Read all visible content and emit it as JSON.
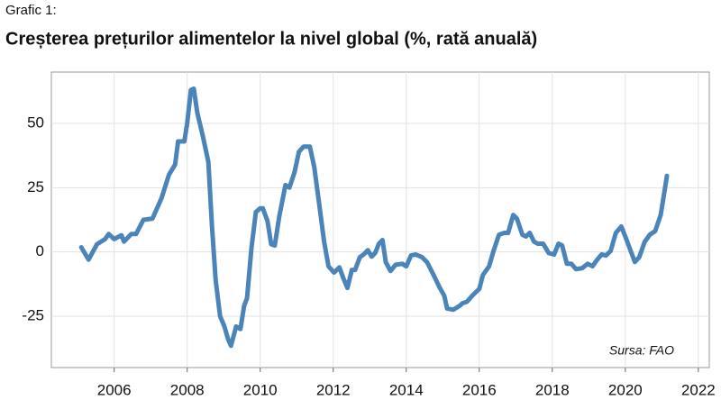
{
  "chart_data": {
    "type": "line",
    "label": "Grafic 1:",
    "title": "Creșterea prețurilor alimentelor la nivel global (%, rată anuală)",
    "source": "Sursa: FAO",
    "grid": true,
    "xlim": [
      2004.28,
      2022.3
    ],
    "ylim": [
      -45,
      70
    ],
    "xticks": [
      2006,
      2008,
      2010,
      2012,
      2014,
      2016,
      2018,
      2020,
      2022
    ],
    "yticks": [
      -25,
      0,
      25,
      50
    ],
    "x": [
      2005.1,
      2005.3,
      2005.53,
      2005.75,
      2005.85,
      2006.0,
      2006.2,
      2006.27,
      2006.47,
      2006.6,
      2006.8,
      2007.05,
      2007.3,
      2007.5,
      2007.67,
      2007.75,
      2007.92,
      2008.0,
      2008.1,
      2008.18,
      2008.28,
      2008.43,
      2008.58,
      2008.68,
      2008.78,
      2008.9,
      2009.02,
      2009.12,
      2009.2,
      2009.34,
      2009.46,
      2009.56,
      2009.64,
      2009.76,
      2009.88,
      2010.0,
      2010.07,
      2010.2,
      2010.3,
      2010.4,
      2010.52,
      2010.69,
      2010.8,
      2010.94,
      2011.06,
      2011.19,
      2011.36,
      2011.48,
      2011.63,
      2011.75,
      2011.87,
      2012.02,
      2012.17,
      2012.27,
      2012.39,
      2012.51,
      2012.6,
      2012.73,
      2012.83,
      2012.95,
      2013.05,
      2013.15,
      2013.25,
      2013.35,
      2013.44,
      2013.57,
      2013.71,
      2013.89,
      2014.0,
      2014.13,
      2014.26,
      2014.43,
      2014.57,
      2014.75,
      2014.92,
      2015.04,
      2015.12,
      2015.29,
      2015.46,
      2015.54,
      2015.66,
      2015.81,
      2016.0,
      2016.1,
      2016.27,
      2016.39,
      2016.54,
      2016.69,
      2016.79,
      2016.93,
      2017.03,
      2017.18,
      2017.28,
      2017.38,
      2017.5,
      2017.6,
      2017.75,
      2017.9,
      2018.05,
      2018.17,
      2018.27,
      2018.4,
      2018.52,
      2018.65,
      2018.82,
      2018.97,
      2019.1,
      2019.22,
      2019.35,
      2019.47,
      2019.6,
      2019.74,
      2019.89,
      2020.0,
      2020.14,
      2020.26,
      2020.38,
      2020.53,
      2020.67,
      2020.82,
      2020.97,
      2021.06,
      2021.14
    ],
    "series": [
      {
        "color": "#4a84b8",
        "values": [
          1.8,
          -3,
          3,
          5,
          7,
          5,
          6.5,
          4,
          7,
          7,
          12.5,
          13,
          21,
          30,
          34,
          43,
          43,
          50,
          63,
          63.5,
          54,
          45,
          35,
          10,
          -11,
          -25,
          -29,
          -34,
          -36.5,
          -29,
          -30,
          -21,
          -18,
          1.5,
          15.5,
          17,
          17,
          12,
          3,
          2.5,
          13.7,
          26,
          25,
          31,
          39,
          41,
          41,
          33,
          17,
          4,
          -5.6,
          -8,
          -6,
          -10,
          -14,
          -7,
          -7,
          -2,
          -1,
          0.7,
          -1.8,
          -0.4,
          3.2,
          4.6,
          -4,
          -7.4,
          -5,
          -4.6,
          -5.6,
          -1.4,
          -1,
          -2,
          -4,
          -9,
          -14,
          -17,
          -22,
          -22.5,
          -21,
          -20,
          -19.4,
          -17,
          -14.4,
          -9,
          -5.6,
          0.4,
          6.7,
          7.4,
          7.4,
          14.4,
          13,
          6.7,
          6,
          7.4,
          4,
          3.2,
          3.2,
          -0.4,
          -1,
          3.2,
          2.5,
          -4.6,
          -4.6,
          -6.7,
          -6.3,
          -4.6,
          -5.6,
          -3.2,
          -1,
          -1.4,
          0.4,
          7.4,
          9.9,
          6,
          0.7,
          -3.9,
          -2.1,
          3.9,
          6.7,
          8.1,
          14.4,
          22.5,
          29.6
        ]
      }
    ]
  }
}
